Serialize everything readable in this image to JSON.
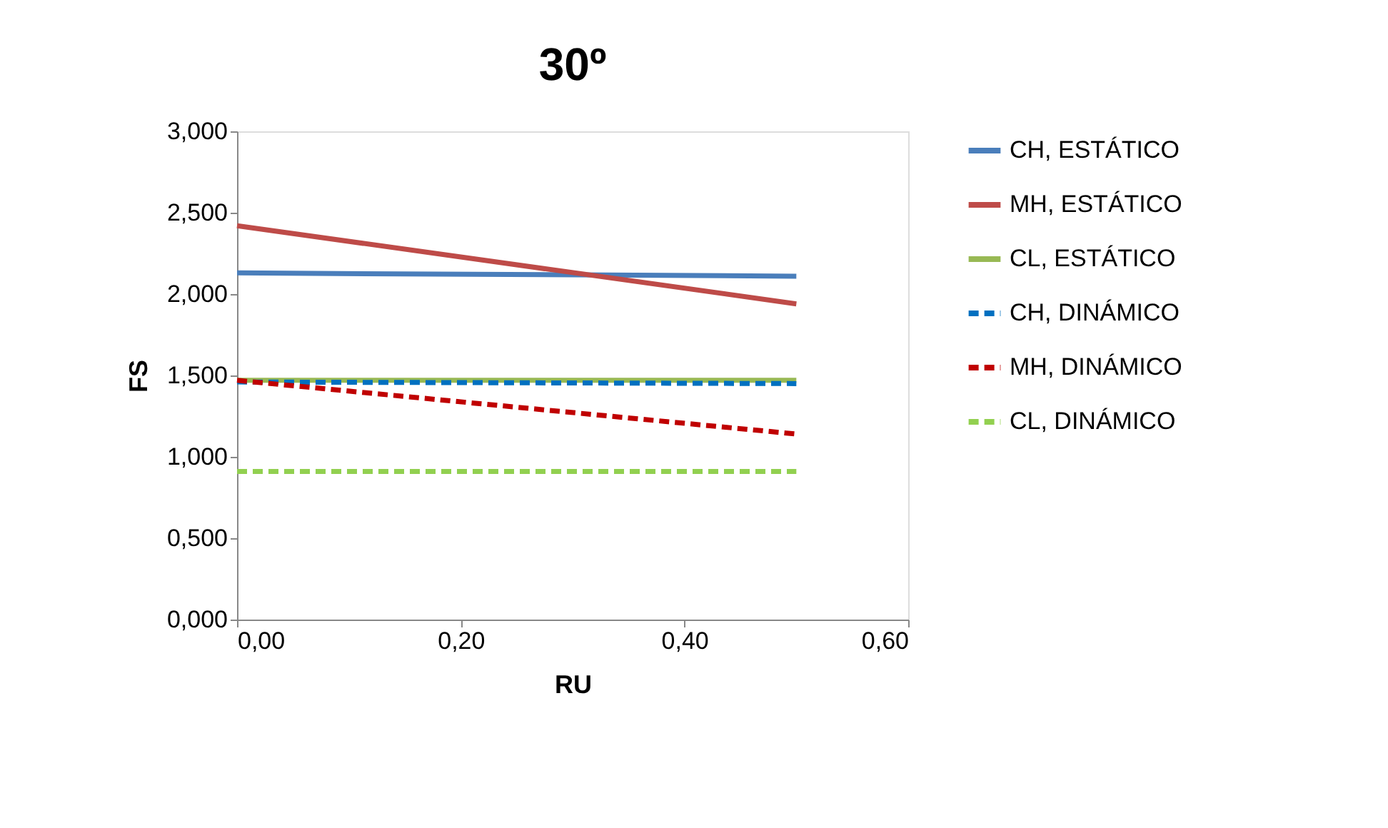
{
  "chart_data": {
    "type": "line",
    "title": "30º",
    "xlabel": "RU",
    "ylabel": "FS",
    "x": [
      0,
      0.5
    ],
    "series": [
      {
        "name": "CH, ESTÁTICO",
        "color": "#4a7ebb",
        "values": [
          2.13,
          2.11
        ],
        "line_style": "solid"
      },
      {
        "name": "MH, ESTÁTICO",
        "color": "#be4b48",
        "values": [
          2.42,
          1.94
        ],
        "line_style": "solid"
      },
      {
        "name": "CL, ESTÁTICO",
        "color": "#98b954",
        "values": [
          1.47,
          1.47
        ],
        "line_style": "solid"
      },
      {
        "name": "CH, DINÁMICO",
        "color": "#0070c0",
        "values": [
          1.46,
          1.45
        ],
        "line_style": "dashed"
      },
      {
        "name": "MH, DINÁMICO",
        "color": "#c00000",
        "values": [
          1.47,
          1.14
        ],
        "line_style": "dashed"
      },
      {
        "name": "CL, DINÁMICO",
        "color": "#92d050",
        "values": [
          0.91,
          0.91
        ],
        "line_style": "dashed"
      }
    ],
    "xlim": [
      0,
      0.6
    ],
    "xticks": [
      {
        "value": 0,
        "label": "0,00"
      },
      {
        "value": 0.2,
        "label": "0,20"
      },
      {
        "value": 0.4,
        "label": "0,40"
      },
      {
        "value": 0.6,
        "label": "0,60"
      }
    ],
    "ylim": [
      0,
      3
    ],
    "yticks": [
      {
        "value": 0,
        "label": "0,000"
      },
      {
        "value": 0.5,
        "label": "0,500"
      },
      {
        "value": 1,
        "label": "1,000"
      },
      {
        "value": 1.5,
        "label": "1,500"
      },
      {
        "value": 2,
        "label": "2,000"
      },
      {
        "value": 2.5,
        "label": "2,500"
      },
      {
        "value": 3,
        "label": "3,000"
      }
    ],
    "grid": false,
    "legend": "right",
    "marker": "none"
  }
}
